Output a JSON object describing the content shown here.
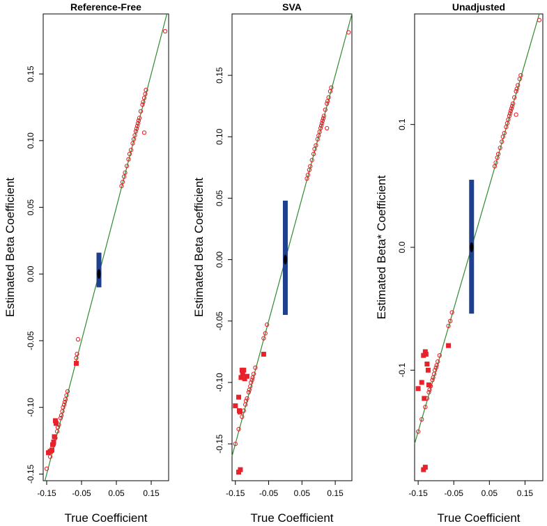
{
  "chart_data": [
    {
      "type": "scatter",
      "title": "Reference-Free",
      "xlabel": "True Coefficient",
      "ylabel": "Estimated Beta Coefficient",
      "xlim": [
        -0.16,
        0.2
      ],
      "ylim": [
        -0.155,
        0.195
      ],
      "x_ticks": [
        -0.15,
        -0.05,
        0.05,
        0.15
      ],
      "x_tick_labels": [
        "-0.15",
        "-0.05",
        "0.05",
        "0.15"
      ],
      "y_ticks": [
        -0.15,
        -0.1,
        -0.05,
        0.0,
        0.05,
        0.1,
        0.15
      ],
      "y_tick_labels": [
        "-0.15",
        "-0.10",
        "-0.05",
        "0.00",
        "0.05",
        "0.10",
        "0.15"
      ],
      "identity_line": true,
      "null_interval": {
        "x": 0.0,
        "low": -0.01,
        "high": 0.016
      },
      "series": [
        {
          "name": "open",
          "x": [
            -0.15,
            -0.14,
            -0.135,
            -0.13,
            -0.125,
            -0.12,
            -0.118,
            -0.115,
            -0.11,
            -0.108,
            -0.105,
            -0.103,
            -0.1,
            -0.098,
            -0.096,
            -0.093,
            -0.09,
            -0.065,
            -0.063,
            -0.06,
            0.065,
            0.068,
            0.072,
            0.075,
            0.08,
            0.085,
            0.088,
            0.092,
            0.097,
            0.1,
            0.103,
            0.106,
            0.108,
            0.11,
            0.112,
            0.114,
            0.116,
            0.12,
            0.125,
            0.127,
            0.13,
            0.133,
            0.135,
            0.19
          ],
          "y": [
            -0.146,
            -0.137,
            -0.133,
            -0.128,
            -0.123,
            -0.118,
            -0.115,
            -0.113,
            -0.108,
            -0.106,
            -0.103,
            -0.1,
            -0.098,
            -0.096,
            -0.094,
            -0.091,
            -0.088,
            -0.063,
            -0.06,
            -0.049,
            0.066,
            0.069,
            0.073,
            0.076,
            0.081,
            0.086,
            0.09,
            0.093,
            0.098,
            0.101,
            0.104,
            0.107,
            0.109,
            0.111,
            0.113,
            0.115,
            0.117,
            0.122,
            0.127,
            0.129,
            0.132,
            0.135,
            0.138,
            0.182
          ]
        },
        {
          "name": "filled",
          "x": [
            -0.145,
            -0.14,
            -0.135,
            -0.133,
            -0.13,
            -0.128,
            -0.125,
            -0.123,
            -0.065
          ],
          "y": [
            -0.134,
            -0.133,
            -0.132,
            -0.128,
            -0.126,
            -0.122,
            -0.11,
            -0.112,
            -0.067
          ]
        },
        {
          "name": "open-offline",
          "x": [
            0.13
          ],
          "y": [
            0.106
          ]
        }
      ]
    },
    {
      "type": "scatter",
      "title": "SVA",
      "xlabel": "True Coefficient",
      "ylabel": "Estimated Beta Coefficient",
      "xlim": [
        -0.16,
        0.2
      ],
      "ylim": [
        -0.18,
        0.2
      ],
      "x_ticks": [
        -0.15,
        -0.05,
        0.05,
        0.15
      ],
      "x_tick_labels": [
        "-0.15",
        "-0.05",
        "0.05",
        "0.15"
      ],
      "y_ticks": [
        -0.15,
        -0.1,
        -0.05,
        0.0,
        0.05,
        0.1,
        0.15
      ],
      "y_tick_labels": [
        "-0.15",
        "-0.10",
        "-0.05",
        "0.00",
        "0.05",
        "0.10",
        "0.15"
      ],
      "identity_line": true,
      "null_interval": {
        "x": 0.0,
        "low": -0.045,
        "high": 0.048
      },
      "series": [
        {
          "name": "open",
          "x": [
            -0.15,
            -0.14,
            -0.13,
            -0.125,
            -0.12,
            -0.118,
            -0.115,
            -0.11,
            -0.108,
            -0.105,
            -0.103,
            -0.1,
            -0.098,
            -0.095,
            -0.09,
            -0.065,
            -0.06,
            -0.055,
            0.065,
            0.068,
            0.072,
            0.075,
            0.08,
            0.085,
            0.088,
            0.092,
            0.097,
            0.1,
            0.103,
            0.106,
            0.108,
            0.11,
            0.112,
            0.114,
            0.116,
            0.12,
            0.125,
            0.127,
            0.13,
            0.135,
            0.138,
            0.19
          ],
          "y": [
            -0.15,
            -0.138,
            -0.128,
            -0.123,
            -0.118,
            -0.115,
            -0.113,
            -0.108,
            -0.106,
            -0.103,
            -0.1,
            -0.098,
            -0.096,
            -0.093,
            -0.088,
            -0.064,
            -0.06,
            -0.053,
            0.066,
            0.069,
            0.073,
            0.076,
            0.081,
            0.086,
            0.09,
            0.093,
            0.098,
            0.101,
            0.104,
            0.107,
            0.109,
            0.111,
            0.113,
            0.115,
            0.117,
            0.122,
            0.127,
            0.129,
            0.132,
            0.137,
            0.14,
            0.185
          ]
        },
        {
          "name": "filled",
          "x": [
            -0.15,
            -0.14,
            -0.138,
            -0.136,
            -0.133,
            -0.13,
            -0.128,
            -0.125,
            -0.122,
            -0.115,
            -0.14,
            -0.135,
            -0.065
          ],
          "y": [
            -0.119,
            -0.112,
            -0.123,
            -0.124,
            -0.096,
            -0.09,
            -0.093,
            -0.09,
            -0.097,
            -0.095,
            -0.173,
            -0.171,
            -0.077
          ]
        },
        {
          "name": "open-offline",
          "x": [
            0.125
          ],
          "y": [
            0.107
          ]
        }
      ]
    },
    {
      "type": "scatter",
      "title": "Unadjusted",
      "xlabel": "True Coefficient",
      "ylabel": "Estimated Beta* Coefficient",
      "xlim": [
        -0.16,
        0.2
      ],
      "ylim": [
        -0.19,
        0.19
      ],
      "x_ticks": [
        -0.15,
        -0.05,
        0.05,
        0.15
      ],
      "x_tick_labels": [
        "-0.15",
        "-0.05",
        "0.05",
        "0.15"
      ],
      "y_ticks": [
        -0.1,
        0.0,
        0.1
      ],
      "y_tick_labels": [
        "-0.1",
        "0.0",
        "0.1"
      ],
      "identity_line": true,
      "null_interval": {
        "x": 0.0,
        "low": -0.054,
        "high": 0.055
      },
      "series": [
        {
          "name": "open",
          "x": [
            -0.15,
            -0.14,
            -0.13,
            -0.125,
            -0.12,
            -0.118,
            -0.115,
            -0.11,
            -0.108,
            -0.105,
            -0.103,
            -0.1,
            -0.098,
            -0.095,
            -0.09,
            -0.065,
            -0.06,
            -0.055,
            0.065,
            0.068,
            0.072,
            0.075,
            0.08,
            0.085,
            0.088,
            0.092,
            0.097,
            0.1,
            0.103,
            0.106,
            0.108,
            0.11,
            0.112,
            0.114,
            0.116,
            0.12,
            0.125,
            0.127,
            0.13,
            0.135,
            0.138,
            0.19
          ],
          "y": [
            -0.15,
            -0.14,
            -0.13,
            -0.123,
            -0.118,
            -0.116,
            -0.113,
            -0.108,
            -0.106,
            -0.103,
            -0.1,
            -0.098,
            -0.096,
            -0.093,
            -0.088,
            -0.064,
            -0.06,
            -0.053,
            0.066,
            0.069,
            0.073,
            0.076,
            0.081,
            0.086,
            0.09,
            0.093,
            0.098,
            0.101,
            0.104,
            0.107,
            0.109,
            0.111,
            0.113,
            0.115,
            0.117,
            0.122,
            0.127,
            0.129,
            0.132,
            0.137,
            0.14,
            0.185
          ]
        },
        {
          "name": "filled",
          "x": [
            -0.15,
            -0.14,
            -0.135,
            -0.133,
            -0.13,
            -0.128,
            -0.125,
            -0.122,
            -0.12,
            -0.135,
            -0.13,
            -0.065
          ],
          "y": [
            -0.115,
            -0.11,
            -0.088,
            -0.123,
            -0.085,
            -0.087,
            -0.095,
            -0.1,
            -0.112,
            -0.181,
            -0.179,
            -0.08
          ]
        },
        {
          "name": "open-offline",
          "x": [
            0.125
          ],
          "y": [
            0.108
          ]
        }
      ]
    }
  ]
}
